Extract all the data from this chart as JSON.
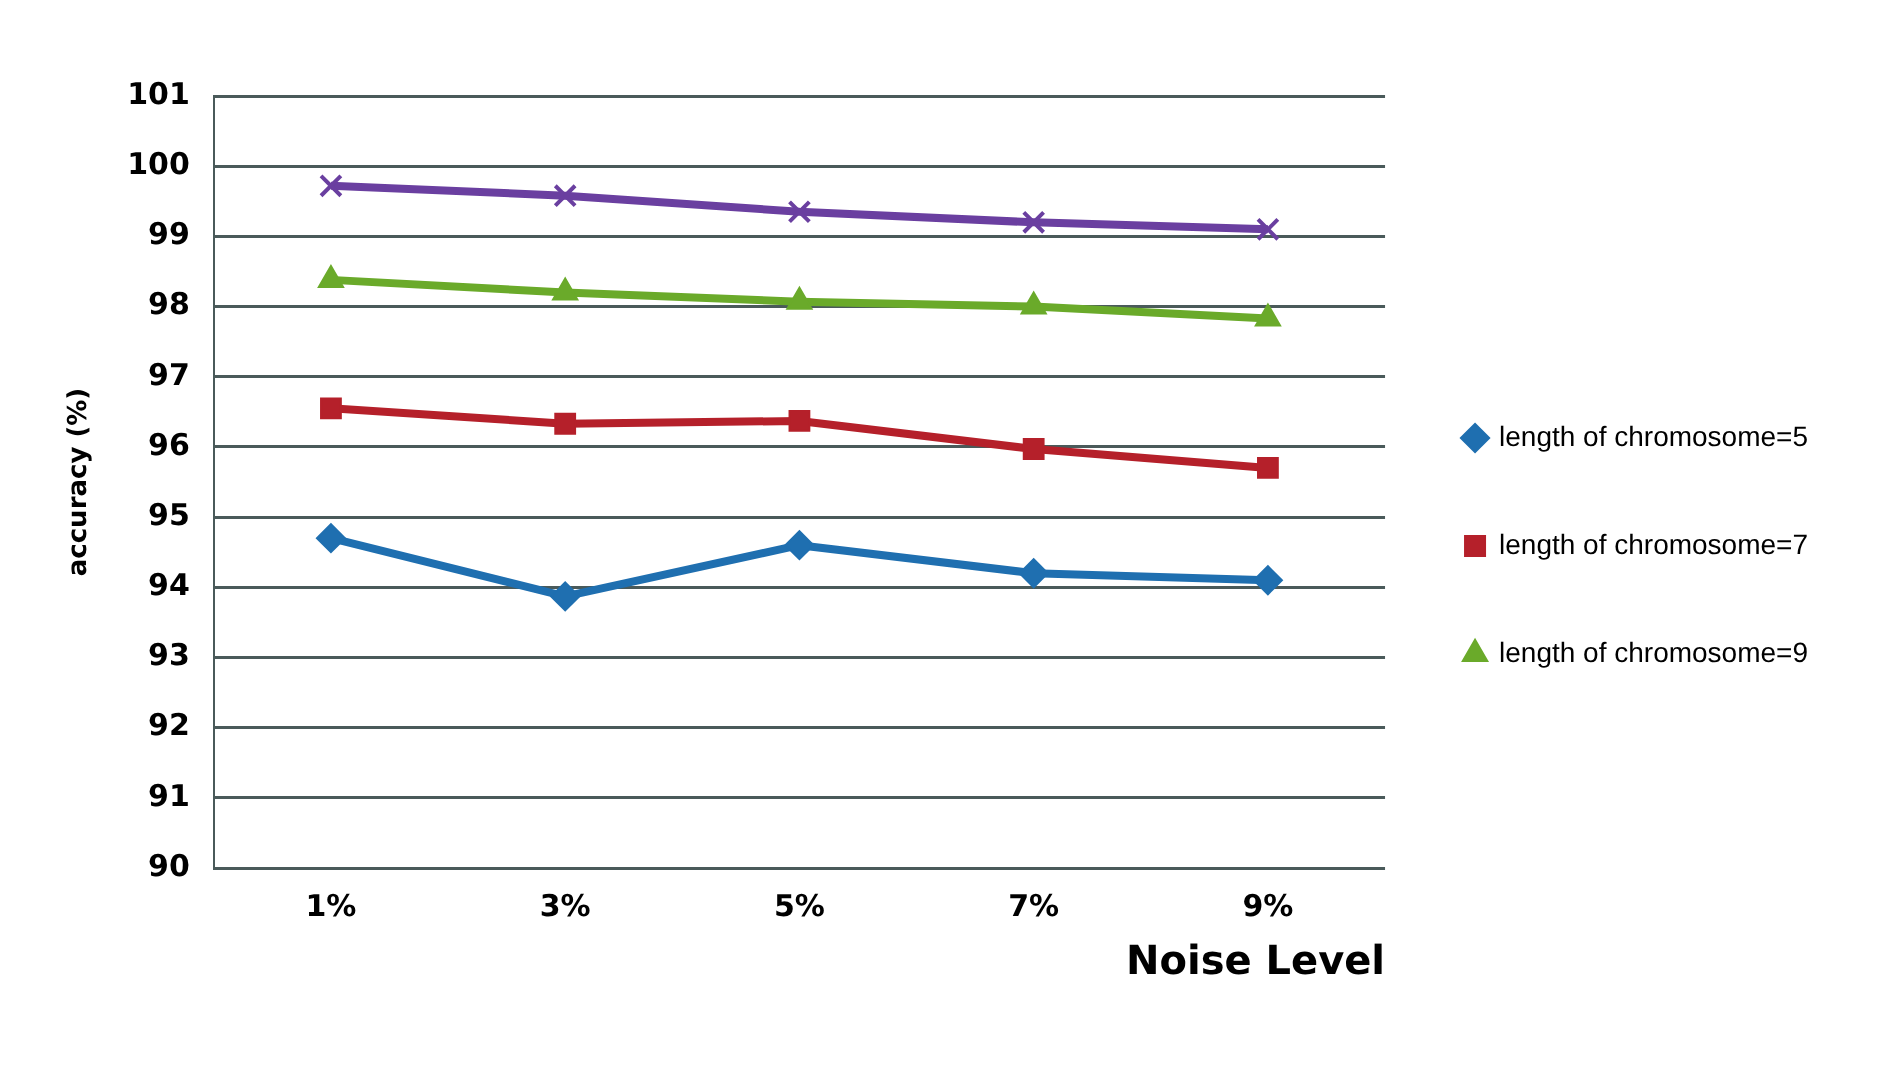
{
  "chart_data": {
    "type": "line",
    "xlabel": "Noise Level",
    "ylabel": "accuracy (%)",
    "categories": [
      "1%",
      "3%",
      "5%",
      "7%",
      "9%"
    ],
    "series": [
      {
        "name": "length of chromosome=5",
        "color": "#1f6fb0",
        "marker": "diamond",
        "values": [
          94.7,
          93.87,
          94.6,
          94.2,
          94.1
        ]
      },
      {
        "name": "length of chromosome=7",
        "color": "#b5202a",
        "marker": "square",
        "values": [
          96.55,
          96.33,
          96.37,
          95.97,
          95.7
        ]
      },
      {
        "name": "length of chromosome=9",
        "color": "#6aaa2a",
        "marker": "triangle",
        "values": [
          98.38,
          98.2,
          98.07,
          98.0,
          97.83
        ]
      },
      {
        "color": "#6a3fa0",
        "marker": "cross",
        "values": [
          99.72,
          99.58,
          99.35,
          99.2,
          99.1
        ]
      }
    ],
    "ylim": [
      90,
      101
    ],
    "yticks": [
      90,
      91,
      92,
      93,
      94,
      95,
      96,
      97,
      98,
      99,
      100,
      101
    ],
    "grid": "y",
    "legend": "right"
  }
}
